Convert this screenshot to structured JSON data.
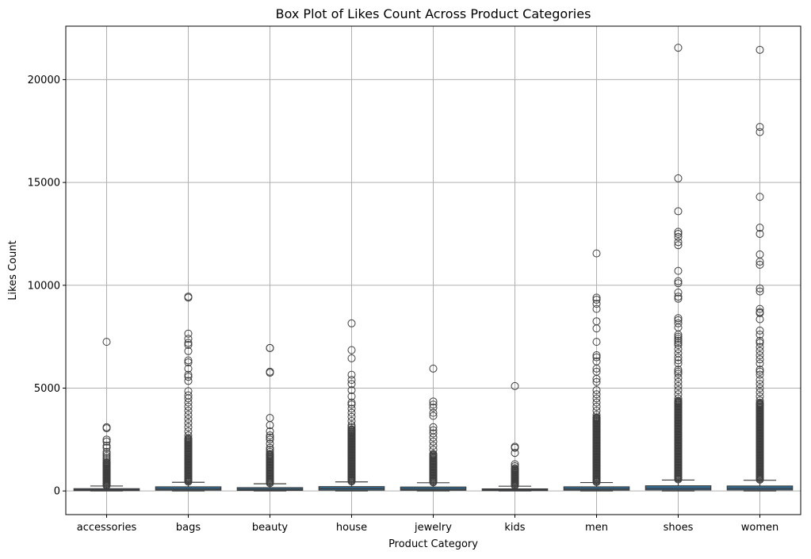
{
  "chart_data": {
    "type": "box",
    "title": "Box Plot of Likes Count Across Product Categories",
    "xlabel": "Product Category",
    "ylabel": "Likes Count",
    "ylim": [
      -1150,
      22600
    ],
    "yticks": [
      0,
      5000,
      10000,
      15000,
      20000
    ],
    "grid": true,
    "box_color": "#3274a1",
    "categories": [
      "accessories",
      "bags",
      "beauty",
      "house",
      "jewelry",
      "kids",
      "men",
      "shoes",
      "women"
    ],
    "boxes": [
      {
        "category": "accessories",
        "whisker_low": 0,
        "q1": 20,
        "median": 55,
        "q3": 110,
        "whisker_high": 240,
        "outliers": [
          7250,
          3100,
          3050,
          2500,
          2400,
          2200,
          2100,
          1900,
          1800,
          1700,
          1600,
          1500,
          1400,
          1300,
          1200,
          1100,
          1000,
          900,
          800,
          700,
          600,
          500,
          400,
          300
        ],
        "dense_from": 260,
        "dense_to": 1400
      },
      {
        "category": "bags",
        "whisker_low": 0,
        "q1": 40,
        "median": 100,
        "q3": 200,
        "whisker_high": 420,
        "outliers": [
          9450,
          9400,
          7650,
          7400,
          7200,
          7100,
          6800,
          6350,
          6250,
          5950,
          5650,
          5550,
          5350,
          4850,
          4650,
          4500,
          4300,
          4100,
          3900,
          3700,
          3500,
          3300,
          3100,
          2900,
          2700
        ],
        "dense_from": 450,
        "dense_to": 2600
      },
      {
        "category": "beauty",
        "whisker_low": 0,
        "q1": 30,
        "median": 80,
        "q3": 160,
        "whisker_high": 350,
        "outliers": [
          6950,
          6950,
          5800,
          5750,
          3550,
          3200,
          2900,
          2700,
          2600,
          2500,
          2300,
          2100,
          2000,
          1900,
          1800
        ],
        "dense_from": 380,
        "dense_to": 1800
      },
      {
        "category": "house",
        "whisker_low": 0,
        "q1": 40,
        "median": 110,
        "q3": 210,
        "whisker_high": 440,
        "outliers": [
          8150,
          6850,
          6450,
          5650,
          5400,
          5200,
          4900,
          4600,
          4300,
          4200,
          4000,
          3800,
          3600,
          3400,
          3200,
          3100,
          3000
        ],
        "dense_from": 460,
        "dense_to": 3000
      },
      {
        "category": "jewelry",
        "whisker_low": 0,
        "q1": 35,
        "median": 95,
        "q3": 190,
        "whisker_high": 400,
        "outliers": [
          5950,
          4350,
          4200,
          4050,
          3800,
          3650,
          3100,
          2950,
          2800,
          2600,
          2400,
          2200,
          2000,
          1800
        ],
        "dense_from": 420,
        "dense_to": 1800
      },
      {
        "category": "kids",
        "whisker_low": 0,
        "q1": 20,
        "median": 50,
        "q3": 100,
        "whisker_high": 230,
        "outliers": [
          5100,
          2150,
          2100,
          1850,
          1300,
          1200,
          1100,
          1000,
          900,
          800,
          700,
          600,
          500,
          400
        ],
        "dense_from": 260,
        "dense_to": 1100
      },
      {
        "category": "men",
        "whisker_low": 0,
        "q1": 40,
        "median": 100,
        "q3": 200,
        "whisker_high": 410,
        "outliers": [
          11550,
          9400,
          9300,
          9100,
          8850,
          8250,
          7900,
          7250,
          6600,
          6500,
          6300,
          5950,
          5800,
          5450,
          5300,
          4900,
          4700,
          4500,
          4300,
          4100,
          3900,
          3700,
          3500
        ],
        "dense_from": 430,
        "dense_to": 3600
      },
      {
        "category": "shoes",
        "whisker_low": 0,
        "q1": 50,
        "median": 130,
        "q3": 250,
        "whisker_high": 530,
        "outliers": [
          21550,
          15200,
          13600,
          12600,
          12500,
          12350,
          12100,
          11950,
          10700,
          10200,
          10100,
          9650,
          9450,
          9350,
          8400,
          8300,
          8150,
          7950,
          7600,
          7500,
          7400,
          7300,
          7200,
          7100,
          6900,
          6700,
          6500,
          6350,
          6200,
          5900,
          5800,
          5700,
          5500,
          5300,
          5100,
          4900,
          4700,
          4500,
          4300
        ],
        "dense_from": 560,
        "dense_to": 4400
      },
      {
        "category": "women",
        "whisker_low": 0,
        "q1": 50,
        "median": 130,
        "q3": 240,
        "whisker_high": 520,
        "outliers": [
          21450,
          17700,
          17450,
          14300,
          12800,
          12500,
          11500,
          11150,
          11000,
          9850,
          9700,
          8850,
          8700,
          8650,
          8350,
          7800,
          7600,
          7300,
          7200,
          7000,
          6800,
          6600,
          6400,
          6200,
          5900,
          5800,
          5650,
          5400,
          5200,
          5000,
          4800,
          4600,
          4400,
          4200
        ],
        "dense_from": 550,
        "dense_to": 4300
      }
    ]
  }
}
